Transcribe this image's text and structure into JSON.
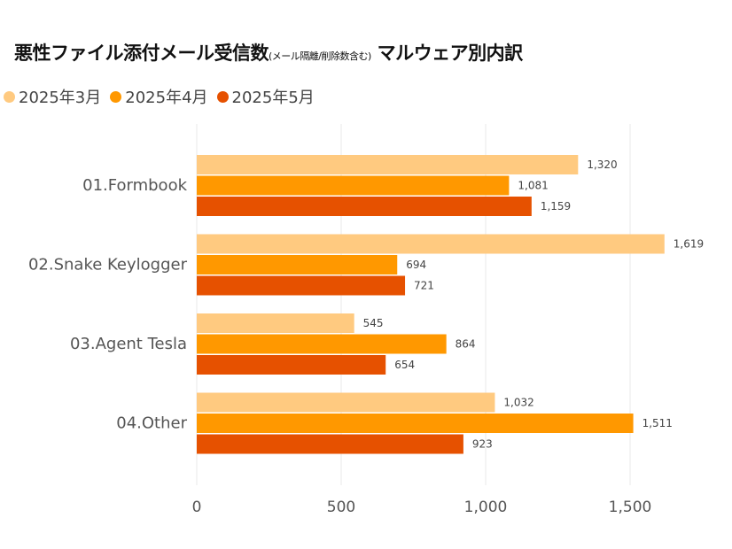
{
  "chart_data": {
    "type": "bar",
    "orientation": "horizontal",
    "title": "悪性ファイル添付メール受信数",
    "title_note": "(メール隔離/削除数含む)",
    "title_suffix": "マルウェア別内訳",
    "categories": [
      "01.Formbook",
      "02.Snake Keylogger",
      "03.Agent Tesla",
      "04.Other"
    ],
    "series": [
      {
        "name": "2025年3月",
        "color": "#FFCA80",
        "values": [
          1320,
          1619,
          545,
          1032
        ]
      },
      {
        "name": "2025年4月",
        "color": "#FF9800",
        "values": [
          1081,
          694,
          864,
          1511
        ]
      },
      {
        "name": "2025年5月",
        "color": "#E65100",
        "values": [
          1159,
          721,
          654,
          923
        ]
      }
    ],
    "xlim": [
      0,
      1780
    ],
    "xticks": [
      0,
      500,
      1000,
      1500
    ],
    "xtick_labels": [
      "0",
      "500",
      "1,000",
      "1,500"
    ],
    "grid": true,
    "legend_position": "top-left",
    "data_labels": true
  }
}
